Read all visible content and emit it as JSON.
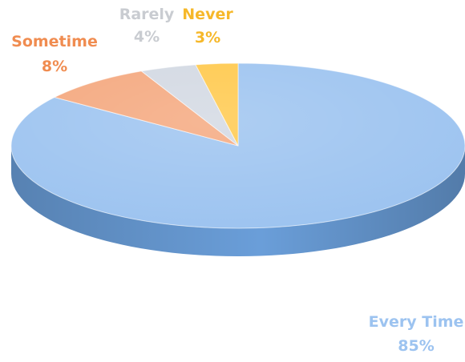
{
  "chart_data": {
    "type": "pie",
    "slices": [
      {
        "label": "Every Time",
        "value": 85,
        "value_text": "85%",
        "color": "#9CC3F0",
        "side_color": "#6A9ED9",
        "label_color": "#9CC3F0"
      },
      {
        "label": "Sometime",
        "value": 8,
        "value_text": "8%",
        "color": "#F4A77D",
        "side_color": "#D9804E",
        "label_color": "#F08C50"
      },
      {
        "label": "Rarely",
        "value": 4,
        "value_text": "4%",
        "color": "#D2D8E2",
        "side_color": "#AAB2BF",
        "label_color": "#C9CCD1"
      },
      {
        "label": "Never",
        "value": 3,
        "value_text": "3%",
        "color": "#FFC84A",
        "side_color": "#E0A21A",
        "label_color": "#F6B82A"
      }
    ],
    "style": "3d",
    "legend": "none",
    "data_labels": "outside, category name and percentage"
  }
}
